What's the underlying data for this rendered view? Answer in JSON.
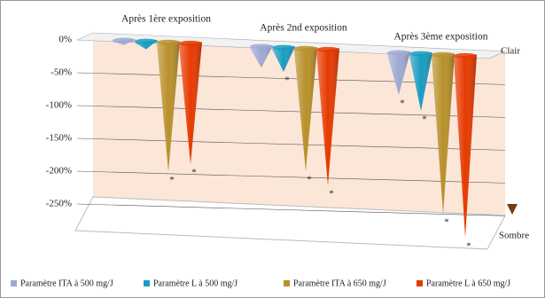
{
  "chart_data": {
    "type": "cone",
    "categories": [
      "Après 1ère exposition",
      "Après 2nd exposition",
      "Après 3ème exposition"
    ],
    "series": [
      {
        "name": "Paramètre ITA à 500 mg/J",
        "color": "#9fa8d4",
        "values": [
          -5,
          -30,
          -62
        ],
        "significance": [
          null,
          null,
          "*"
        ]
      },
      {
        "name": "Paramètre L à 500 mg/J",
        "color": "#1a9cc0",
        "values": [
          -10,
          -35,
          -85
        ],
        "significance": [
          null,
          "*",
          "*"
        ]
      },
      {
        "name": "Paramètre ITA à 650 mg/J",
        "color": "#b8902a",
        "values": [
          -195,
          -185,
          -240
        ],
        "significance": [
          "*",
          "*",
          "*"
        ]
      },
      {
        "name": "Paramètre L à 650 mg/J",
        "color": "#e63a00",
        "values": [
          -182,
          -205,
          -275
        ],
        "significance": [
          "*",
          "*",
          "*"
        ]
      }
    ],
    "ylim": [
      -250,
      0
    ],
    "yticks": [
      {
        "value": 0,
        "label": "0%"
      },
      {
        "value": -50,
        "label": "-50%"
      },
      {
        "value": -100,
        "label": "-100%"
      },
      {
        "value": -150,
        "label": "-150%"
      },
      {
        "value": -200,
        "label": "-200%"
      },
      {
        "value": -250,
        "label": "-250%"
      }
    ],
    "grid": true,
    "scale_top_label": "Clair",
    "scale_bottom_label": "Sombre",
    "legend": "bottom"
  }
}
